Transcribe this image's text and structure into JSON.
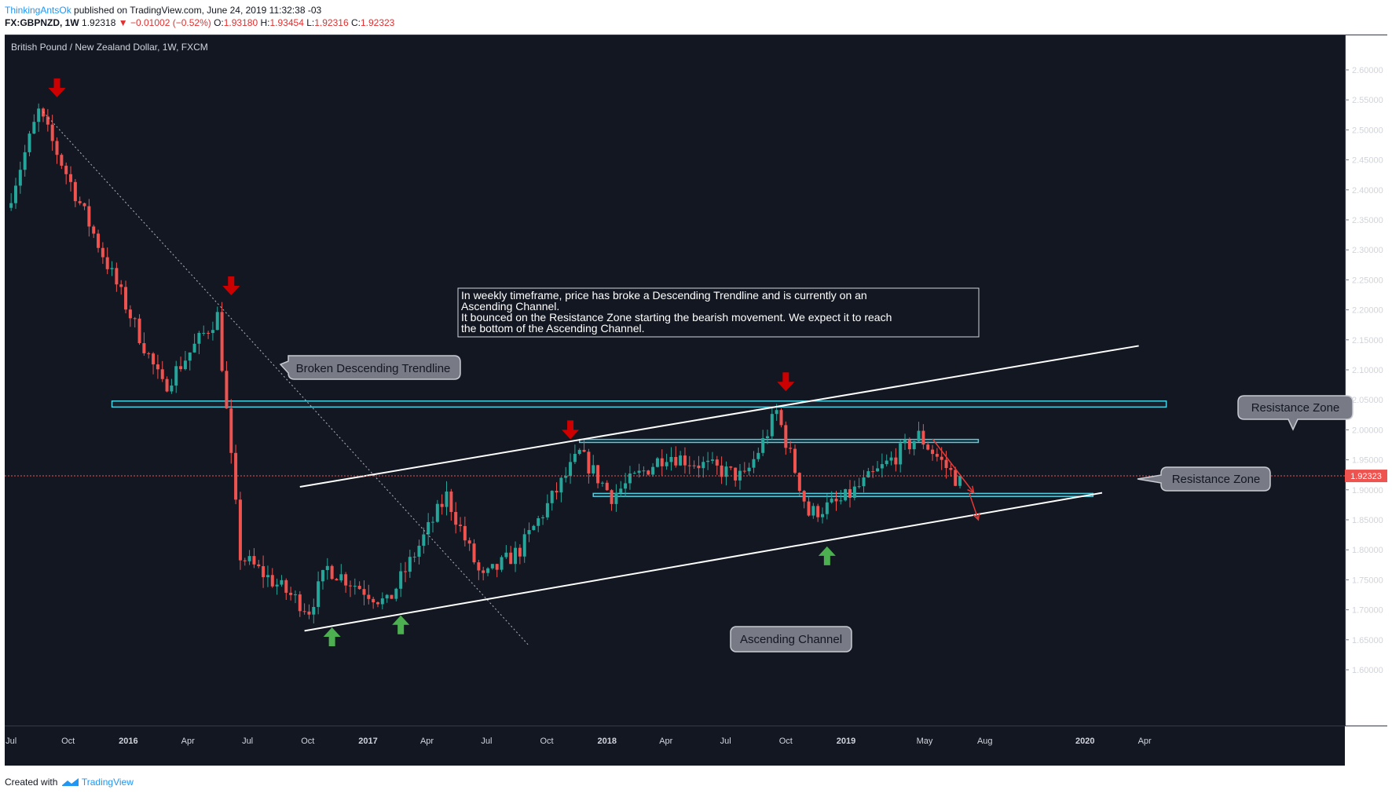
{
  "header": {
    "author": "ThinkingAntsOk",
    "published": "published on TradingView.com, June 24, 2019 11:32:38 -03",
    "symbol": "FX:GBPNZD, 1W",
    "last": "1.92318",
    "change_arrow": "▼",
    "change": "−0.01002 (−0.52%)",
    "o_label": "O:",
    "o_value": "1.93180",
    "h_label": "H:",
    "h_value": "1.93454",
    "l_label": "L:",
    "l_value": "1.92316",
    "c_label": "C:",
    "c_value": "1.92323"
  },
  "footer": {
    "created_label": "Created with",
    "brand": "TradingView",
    "logo_icon": "tradingview-logo-icon"
  },
  "chart_data": {
    "type": "candlestick",
    "title": "British Pound / New Zealand Dollar, 1W, FXCM",
    "y_ticks": [
      "2.60000",
      "2.55000",
      "2.50000",
      "2.45000",
      "2.40000",
      "2.35000",
      "2.30000",
      "2.25000",
      "2.20000",
      "2.15000",
      "2.10000",
      "2.05000",
      "2.00000",
      "1.95000",
      "1.90000",
      "1.85000",
      "1.80000",
      "1.75000",
      "1.70000",
      "1.65000",
      "1.60000"
    ],
    "ylim": [
      1.6,
      2.6
    ],
    "x_ticks": [
      "Jul",
      "Oct",
      "2016",
      "Apr",
      "Jul",
      "Oct",
      "2017",
      "Apr",
      "Jul",
      "Oct",
      "2018",
      "Apr",
      "Jul",
      "Oct",
      "2019",
      "May",
      "Aug",
      "2020",
      "Apr"
    ],
    "current_price": "1.92323",
    "grid": false,
    "colors": {
      "background": "#131722",
      "up": "#26a69a",
      "down": "#ef5350",
      "zone": "#4dd0e1",
      "annotation_arrow": "#cc0000",
      "support_arrow": "#4caf50"
    },
    "annotation_text": [
      "In weekly timeframe, price has broke a Descending Trendline and is currently on an",
      "Ascending Channel.",
      "It bounced on the Resistance Zone starting the bearish movement. We expect it to reach",
      "the bottom of the Ascending Channel."
    ],
    "callouts": {
      "broken_trendline": "Broken Descending Trendline",
      "resistance_upper": "Resistance Zone",
      "resistance_lower": "Resistance Zone",
      "ascending_channel": "Ascending Channel"
    },
    "anchors": [
      {
        "date": "2015-07-06",
        "price": 2.37
      },
      {
        "date": "2015-08-24",
        "price": 2.53
      },
      {
        "date": "2016-03-01",
        "price": 2.07
      },
      {
        "date": "2016-05-23",
        "price": 2.19
      },
      {
        "date": "2016-06-27",
        "price": 1.79
      },
      {
        "date": "2016-10-10",
        "price": 1.7
      },
      {
        "date": "2016-11-07",
        "price": 1.77
      },
      {
        "date": "2017-02-06",
        "price": 1.71
      },
      {
        "date": "2017-05-08",
        "price": 1.89
      },
      {
        "date": "2017-07-01",
        "price": 1.75
      },
      {
        "date": "2017-08-28",
        "price": 1.8
      },
      {
        "date": "2017-11-27",
        "price": 1.96
      },
      {
        "date": "2018-01-15",
        "price": 1.89
      },
      {
        "date": "2018-04-09",
        "price": 1.96
      },
      {
        "date": "2018-08-06",
        "price": 1.92
      },
      {
        "date": "2018-09-03",
        "price": 1.98
      },
      {
        "date": "2018-09-24",
        "price": 2.03
      },
      {
        "date": "2018-11-12",
        "price": 1.86
      },
      {
        "date": "2018-12-31",
        "price": 1.88
      },
      {
        "date": "2019-02-25",
        "price": 1.93
      },
      {
        "date": "2019-04-29",
        "price": 1.99
      },
      {
        "date": "2019-06-24",
        "price": 1.92
      }
    ],
    "lines": {
      "descending_trendline": [
        {
          "date": "2015-08-24",
          "price": 2.53
        },
        {
          "date": "2017-09-04",
          "price": 1.64
        }
      ],
      "channel_upper": [
        {
          "date": "2016-09-19",
          "price": 1.905
        },
        {
          "date": "2020-03-23",
          "price": 2.14
        }
      ],
      "channel_lower": [
        {
          "date": "2016-09-26",
          "price": 1.665
        },
        {
          "date": "2020-01-27",
          "price": 1.895
        }
      ],
      "projection_1": [
        {
          "date": "2019-05-13",
          "price": 1.985
        },
        {
          "date": "2019-07-15",
          "price": 1.895
        }
      ],
      "projection_2": [
        {
          "date": "2019-07-08",
          "price": 1.895
        },
        {
          "date": "2019-07-22",
          "price": 1.85
        }
      ]
    },
    "zones": {
      "upper": {
        "start": "2015-12-07",
        "end": "2020-05-04",
        "top": 2.048,
        "bottom": 2.038
      },
      "middle": {
        "start": "2017-11-20",
        "end": "2019-07-22",
        "top": 1.984,
        "bottom": 1.979
      },
      "lower": {
        "start": "2017-12-11",
        "end": "2020-01-13",
        "top": 1.894,
        "bottom": 1.889
      }
    },
    "down_arrows": [
      {
        "date": "2015-09-14",
        "price": 2.57
      },
      {
        "date": "2016-06-06",
        "price": 2.24
      },
      {
        "date": "2017-11-06",
        "price": 2.0
      },
      {
        "date": "2018-10-01",
        "price": 2.08
      }
    ],
    "up_arrows": [
      {
        "date": "2016-11-07",
        "price": 1.655
      },
      {
        "date": "2017-02-20",
        "price": 1.675
      },
      {
        "date": "2018-12-03",
        "price": 1.79
      }
    ]
  }
}
